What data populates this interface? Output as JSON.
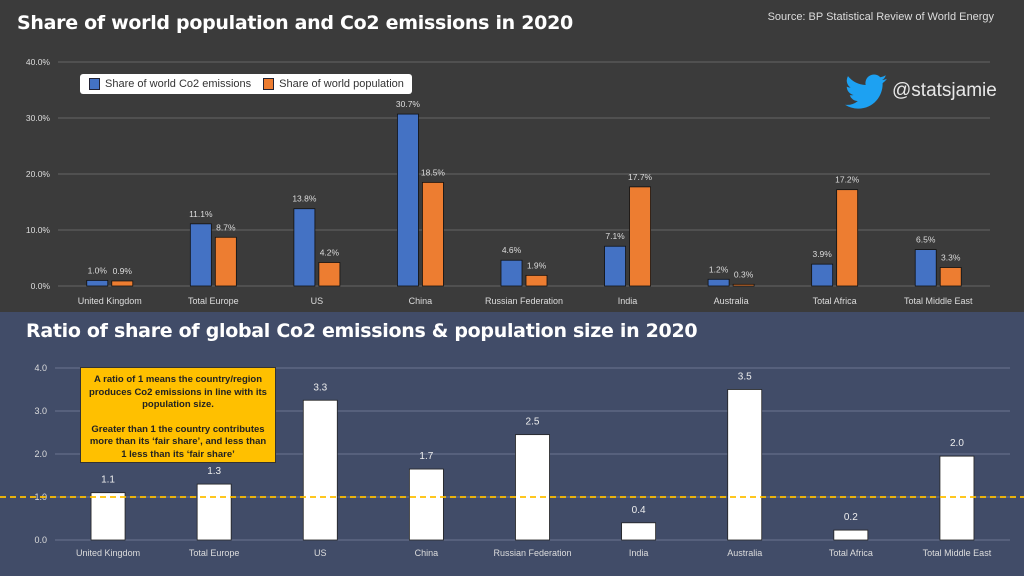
{
  "chart_data": [
    {
      "type": "bar",
      "title": "Share of world population and Co2 emissions in 2020",
      "source": "Source: BP Statistical Review of World Energy",
      "categories": [
        "United Kingdom",
        "Total Europe",
        "US",
        "China",
        "Russian Federation",
        "India",
        "Australia",
        "Total Africa",
        "Total Middle East"
      ],
      "series": [
        {
          "name": "Share of world Co2 emissions",
          "color": "#4472c4",
          "values": [
            1.0,
            11.1,
            13.8,
            30.7,
            4.6,
            7.1,
            1.2,
            3.9,
            6.5
          ],
          "labels": [
            "1.0%",
            "11.1%",
            "13.8%",
            "30.7%",
            "4.6%",
            "7.1%",
            "1.2%",
            "3.9%",
            "6.5%"
          ]
        },
        {
          "name": "Share of world population",
          "color": "#ed7d31",
          "values": [
            0.9,
            8.7,
            4.2,
            18.5,
            1.9,
            17.7,
            0.3,
            17.2,
            3.3
          ],
          "labels": [
            "0.9%",
            "8.7%",
            "4.2%",
            "18.5%",
            "1.9%",
            "17.7%",
            "0.3%",
            "17.2%",
            "3.3%"
          ]
        }
      ],
      "ylim": [
        0,
        40
      ],
      "yticks": [
        "0.0%",
        "10.0%",
        "20.0%",
        "30.0%",
        "40.0%"
      ],
      "grid": true,
      "legend": "top-left"
    },
    {
      "type": "bar",
      "title": "Ratio of share of global Co2 emissions & population size in 2020",
      "categories": [
        "United Kingdom",
        "Total Europe",
        "US",
        "China",
        "Russian Federation",
        "India",
        "Australia",
        "Total Africa",
        "Total Middle East"
      ],
      "values": [
        1.1,
        1.3,
        3.25,
        1.65,
        2.45,
        0.4,
        3.5,
        0.23,
        1.95
      ],
      "labels": [
        "1.1",
        "1.3",
        "3.3",
        "1.7",
        "2.5",
        "0.4",
        "3.5",
        "0.2",
        "2.0"
      ],
      "color": "#ffffff",
      "reference_line": {
        "value": 1.0,
        "color": "#ffc000",
        "style": "dashed"
      },
      "ylim": [
        0,
        4
      ],
      "yticks": [
        "0.0",
        "1.0",
        "2.0",
        "3.0",
        "4.0"
      ],
      "grid": true,
      "annotation": {
        "line1": "A ratio of 1 means the country/region produces Co2 emissions in line with its population size.",
        "line2": "Greater than 1 the country contributes more than its ‘fair share’, and less than 1 less than its ‘fair  share’"
      }
    }
  ],
  "branding": {
    "handle": "@statsjamie",
    "icon": "twitter-bird-icon",
    "color": "#1da1f2"
  }
}
